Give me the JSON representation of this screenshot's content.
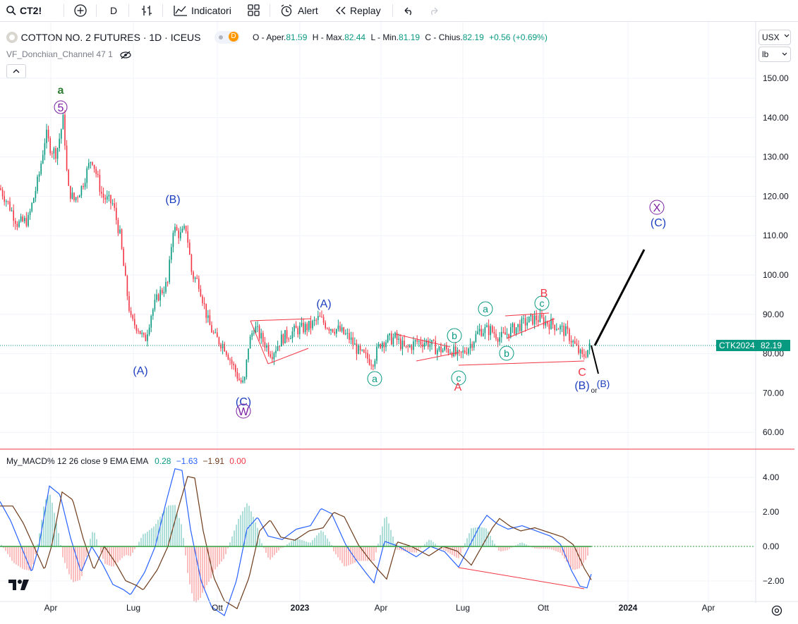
{
  "toolbar": {
    "symbol": "CT2!",
    "interval": "D",
    "indicators_label": "Indicatori",
    "alert_label": "Alert",
    "replay_label": "Replay"
  },
  "legend": {
    "title": "COTTON NO. 2 FUTURES · 1D · ICEUS",
    "badge": "D",
    "o_label": "O - Aper.",
    "o_val": "81.59",
    "h_label": "H - Max.",
    "h_val": "82.44",
    "l_label": "L - Min.",
    "l_val": "81.19",
    "c_label": "C - Chius.",
    "c_val": "82.19",
    "change": "+0.56 (+0.69%)",
    "indicator": "VF_Donchian_Channel 47 1"
  },
  "currency": {
    "ccy": "USX",
    "unit": "lb"
  },
  "price_axis": [
    "150.00",
    "140.00",
    "130.00",
    "120.00",
    "110.00",
    "100.00",
    "90.00",
    "80.00",
    "70.00",
    "60.00"
  ],
  "last_price": {
    "contract": "CTK2024",
    "price": "82.19"
  },
  "macd": {
    "label": "My_MACD% 12 26 close 9 EMA EMA",
    "v1": "0.28",
    "v2": "−1.63",
    "v3": "−1.91",
    "v4": "0.00",
    "axis": [
      "4.00",
      "2.00",
      "0.00",
      "−2.00"
    ]
  },
  "time_axis": [
    "Apr",
    "Lug",
    "Ott",
    "2023",
    "Apr",
    "Lug",
    "Ott",
    "2024",
    "Apr"
  ],
  "waves": {
    "a_top": "a",
    "five": "5",
    "B_par": "(B)",
    "A_par1": "(A)",
    "C_par": "(C)",
    "W": "W",
    "A_par2": "(A)",
    "a_circ1": "a",
    "b_circ1": "b",
    "c_circ1": "c",
    "A_red": "A",
    "a_circ2": "a",
    "b_circ2": "b",
    "c_circ2": "c",
    "B_red": "B",
    "C_red": "C",
    "B_par2": "(B)",
    "or": "or",
    "B_par3": "(B)",
    "X": "X",
    "C_par2": "(C)"
  },
  "colors": {
    "up": "#089981",
    "down": "#f23645",
    "wave_blue": "#1e3fbf",
    "wave_purple": "#7b1fa2",
    "green": "#2e7d32",
    "red": "#d32f2f",
    "macd_line": "#2962ff",
    "signal_line": "#6d3b1a"
  },
  "chart_data": {
    "type": "line",
    "title": "COTTON NO. 2 FUTURES · 1D · ICEUS",
    "xlabel": "",
    "ylabel": "",
    "x": [
      "2022-02",
      "2022-03",
      "2022-04",
      "2022-05",
      "2022-06",
      "2022-07",
      "2022-08",
      "2022-09",
      "2022-10",
      "2022-11",
      "2022-12",
      "2023-01",
      "2023-02",
      "2023-03",
      "2023-04",
      "2023-05",
      "2023-06",
      "2023-07",
      "2023-08",
      "2023-09",
      "2023-10",
      "2023-11"
    ],
    "series": [
      {
        "values": [
          122,
          120,
          138,
          128,
          118,
          88,
          108,
          98,
          84,
          75,
          84,
          87,
          86,
          80,
          83,
          81,
          80,
          84,
          87,
          88,
          85,
          82.19
        ]
      }
    ],
    "ylim": [
      55,
      155
    ],
    "grid": true
  }
}
